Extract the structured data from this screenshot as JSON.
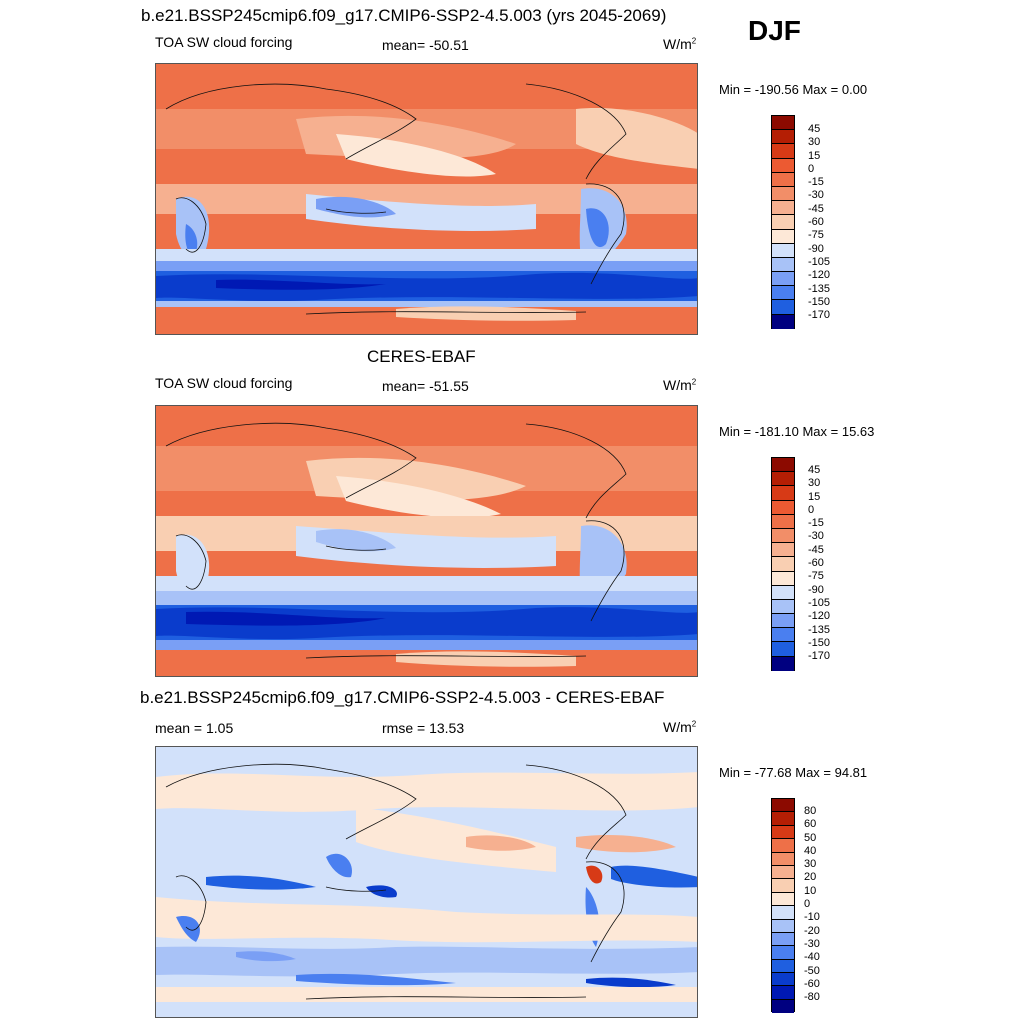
{
  "season": "DJF",
  "palettes": {
    "forcing": [
      "#000080",
      "#0019b4",
      "#0a3ccc",
      "#1f5fe0",
      "#4a7ff0",
      "#7a9ff5",
      "#a8c2f7",
      "#d2e1fa",
      "#fde8d7",
      "#f9cfb2",
      "#f6b090",
      "#f28e68",
      "#ee7048",
      "#ec5a32",
      "#d73a16",
      "#b41e04",
      "#8c0a00"
    ],
    "diff": [
      "#000080",
      "#0019b4",
      "#0a3ccc",
      "#1f5fe0",
      "#4a7ff0",
      "#7a9ff5",
      "#a8c2f7",
      "#d2e1fa",
      "#fde8d7",
      "#f9cfb2",
      "#f6b090",
      "#f28e68",
      "#ee7048",
      "#d73a16",
      "#b41e04",
      "#8c0a00"
    ]
  },
  "panels": [
    {
      "title": "b.e21.BSSP245cmip6.f09_g17.CMIP6-SSP2-4.5.003 (yrs 2045-2069)",
      "left_label": "TOA SW cloud forcing",
      "center_label": "mean= -50.51",
      "units": "W/m",
      "units_exp": "2",
      "minmax": "Min = -190.56 Max =   0.00",
      "ticks": [
        "45",
        "30",
        "15",
        "0",
        "-15",
        "-30",
        "-45",
        "-60",
        "-75",
        "-90",
        "-105",
        "-120",
        "-135",
        "-150",
        "-170"
      ],
      "palette": "forcing"
    },
    {
      "title": "CERES-EBAF",
      "left_label": "TOA SW cloud forcing",
      "center_label": "mean= -51.55",
      "units": "W/m",
      "units_exp": "2",
      "minmax": "Min = -181.10 Max =  15.63",
      "ticks": [
        "45",
        "30",
        "15",
        "0",
        "-15",
        "-30",
        "-45",
        "-60",
        "-75",
        "-90",
        "-105",
        "-120",
        "-135",
        "-150",
        "-170"
      ],
      "palette": "forcing"
    },
    {
      "title": "b.e21.BSSP245cmip6.f09_g17.CMIP6-SSP2-4.5.003 - CERES-EBAF",
      "left_label": "mean =   1.05",
      "center_label": "rmse =  13.53",
      "units": "W/m",
      "units_exp": "2",
      "minmax": "Min = -77.68 Max =  94.81",
      "ticks": [
        "80",
        "60",
        "50",
        "40",
        "30",
        "20",
        "10",
        "0",
        "-10",
        "-20",
        "-30",
        "-40",
        "-50",
        "-60",
        "-80"
      ],
      "palette": "diff"
    }
  ]
}
